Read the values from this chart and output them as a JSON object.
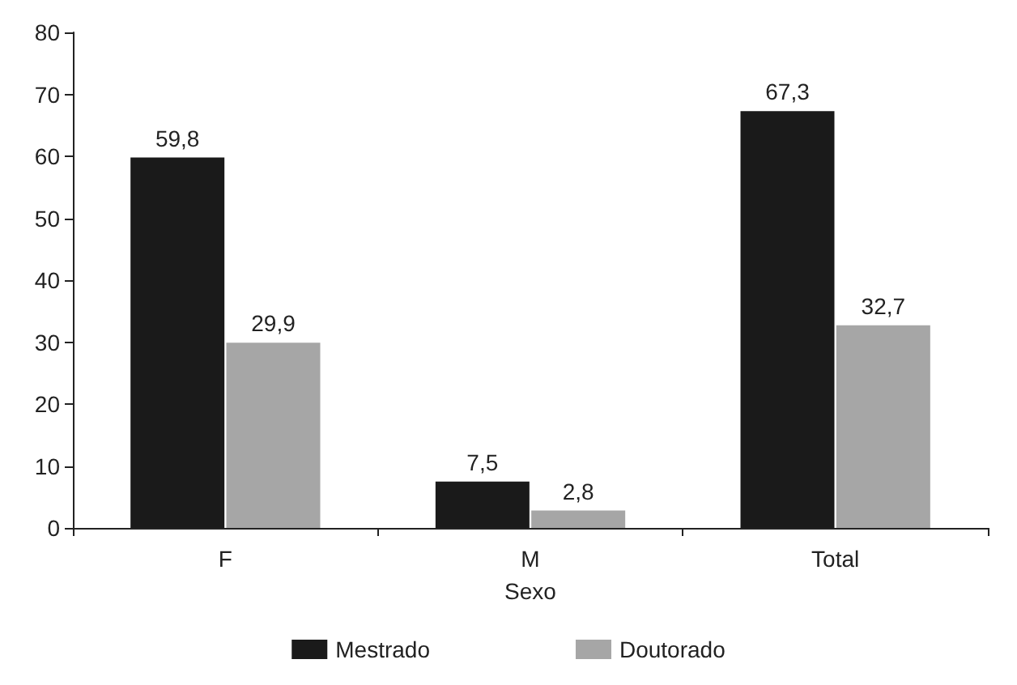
{
  "chart_data": {
    "type": "bar",
    "xlabel": "Sexo",
    "categories": [
      "F",
      "M",
      "Total"
    ],
    "series": [
      {
        "name": "Mestrado",
        "color": "#1a1a1a",
        "values": [
          59.8,
          7.5,
          67.3
        ],
        "value_labels": [
          "59,8",
          "7,5",
          "67,3"
        ]
      },
      {
        "name": "Doutorado",
        "color": "#a6a6a6",
        "values": [
          29.9,
          2.8,
          32.7
        ],
        "value_labels": [
          "29,9",
          "2,8",
          "32,7"
        ]
      }
    ],
    "ylim": [
      0,
      80
    ],
    "yticks": [
      0,
      10,
      20,
      30,
      40,
      50,
      60,
      70,
      80
    ],
    "grid": false,
    "legend": "bottom"
  }
}
